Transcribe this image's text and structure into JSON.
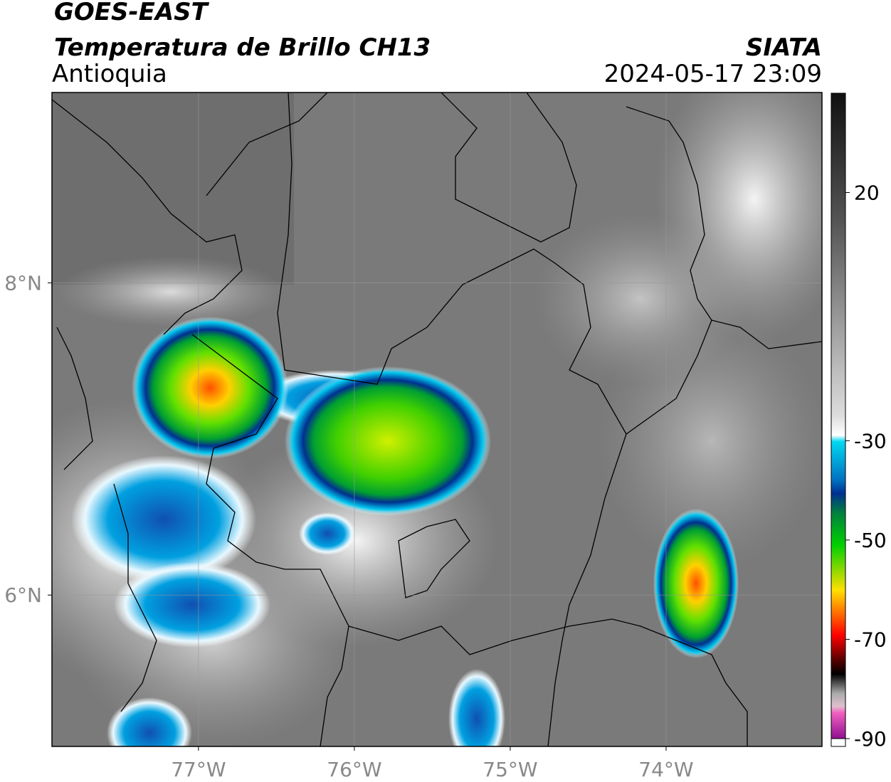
{
  "header": {
    "source": "GOES-EAST",
    "product": "Temperatura de Brillo CH13",
    "region": "Antioquia",
    "agency": "SIATA",
    "datetime": "2024-05-17 23:09"
  },
  "map": {
    "xlim": [
      -77.94,
      -73.0
    ],
    "ylim": [
      5.03,
      9.22
    ],
    "xticks": [
      {
        "value": -77,
        "label": "77°W"
      },
      {
        "value": -76,
        "label": "76°W"
      },
      {
        "value": -75,
        "label": "75°W"
      },
      {
        "value": -74,
        "label": "74°W"
      }
    ],
    "yticks": [
      {
        "value": 6,
        "label": "6°N"
      },
      {
        "value": 8,
        "label": "8°N"
      }
    ]
  },
  "colorbar": {
    "lim": [
      -90,
      40
    ],
    "ticks": [
      20,
      -30,
      -50,
      -70,
      -90
    ]
  }
}
